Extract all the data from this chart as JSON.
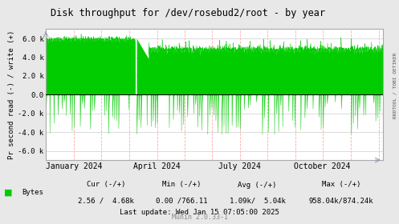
{
  "title": "Disk throughput for /dev/rosebud2/root - by year",
  "ylabel": "Pr second read (-) / write (+)",
  "xlabel_ticks": [
    "January 2024",
    "April 2024",
    "July 2024",
    "October 2024"
  ],
  "xlabel_tick_positions": [
    0.083,
    0.33,
    0.575,
    0.82
  ],
  "ylim": [
    -7000,
    7000
  ],
  "yticks": [
    -6000,
    -4000,
    -2000,
    0,
    2000,
    4000,
    6000
  ],
  "ytick_labels": [
    "-6.0 k",
    "-4.0 k",
    "-2.0 k",
    "0.0",
    "2.0 k",
    "4.0 k",
    "6.0 k"
  ],
  "bg_color": "#e8e8e8",
  "plot_bg_color": "#ffffff",
  "grid_color_h": "#cccccc",
  "grid_color_v": "#ffaaaa",
  "line_color": "#00cc00",
  "zero_line_color": "#000000",
  "right_label": "RRDTOOL / TOBI OETIKER",
  "legend_label": "Bytes",
  "legend_color": "#00cc00",
  "cur_neg": "2.56",
  "cur_pos": "4.68k",
  "min_neg": "0.00",
  "min_pos": "766.11",
  "avg_neg": "1.09k",
  "avg_pos": "5.04k",
  "max_neg": "958.04k",
  "max_pos": "874.24k",
  "last_update": "Last update: Wed Jan 15 07:05:00 2025",
  "munin_version": "Munin 2.0.33-1",
  "border_color": "#aaaaaa",
  "arrow_color": "#9999bb",
  "v_lines": [
    0.083,
    0.163,
    0.247,
    0.33,
    0.411,
    0.493,
    0.575,
    0.658,
    0.74,
    0.82,
    0.904,
    0.987
  ]
}
